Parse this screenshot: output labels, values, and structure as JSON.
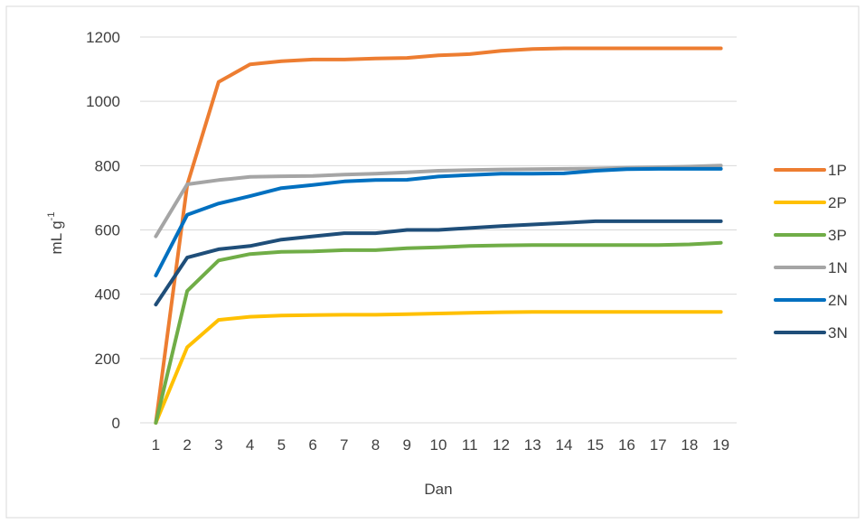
{
  "chart_data": {
    "type": "line",
    "title": "",
    "xlabel": "Dan",
    "ylabel": "mL g",
    "ylabel_superscript": "-1",
    "ylim": [
      0,
      1200
    ],
    "yticks": [
      0,
      200,
      400,
      600,
      800,
      1000,
      1200
    ],
    "x": [
      1,
      2,
      3,
      4,
      5,
      6,
      7,
      8,
      9,
      10,
      11,
      12,
      13,
      14,
      15,
      16,
      17,
      18,
      19
    ],
    "grid": "horizontal",
    "legend_position": "right",
    "series": [
      {
        "name": "1P",
        "color": "#ED7D31",
        "values": [
          0,
          740,
          1060,
          1115,
          1125,
          1130,
          1130,
          1133,
          1135,
          1143,
          1147,
          1157,
          1163,
          1165,
          1165,
          1165,
          1165,
          1165,
          1165
        ]
      },
      {
        "name": "2P",
        "color": "#FFC000",
        "values": [
          0,
          235,
          320,
          330,
          334,
          335,
          336,
          336,
          338,
          340,
          342,
          344,
          345,
          345,
          345,
          345,
          345,
          345,
          345
        ]
      },
      {
        "name": "3P",
        "color": "#70AD47",
        "values": [
          0,
          410,
          505,
          525,
          532,
          533,
          537,
          537,
          543,
          546,
          550,
          552,
          553,
          553,
          553,
          553,
          553,
          555,
          560
        ]
      },
      {
        "name": "1N",
        "color": "#A5A5A5",
        "values": [
          580,
          742,
          755,
          765,
          767,
          768,
          772,
          775,
          779,
          784,
          786,
          788,
          789,
          790,
          791,
          793,
          795,
          797,
          800
        ]
      },
      {
        "name": "2N",
        "color": "#0070C0",
        "values": [
          458,
          647,
          682,
          705,
          730,
          740,
          751,
          755,
          756,
          766,
          771,
          775,
          775,
          776,
          784,
          789,
          790,
          790,
          790
        ]
      },
      {
        "name": "3N",
        "color": "#1F4E79",
        "values": [
          368,
          514,
          540,
          550,
          570,
          580,
          590,
          590,
          600,
          600,
          606,
          612,
          617,
          622,
          627,
          627,
          627,
          627,
          627
        ]
      }
    ]
  }
}
